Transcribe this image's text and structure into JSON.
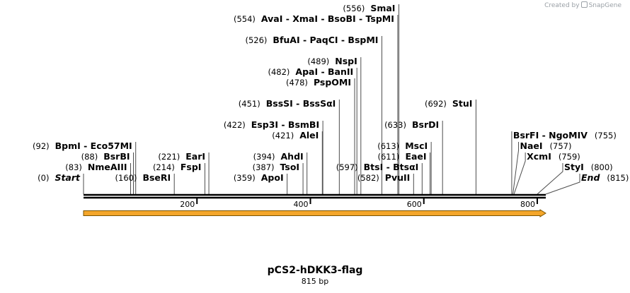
{
  "watermark": {
    "text": "Created by",
    "brand": "SnapGene"
  },
  "map": {
    "name": "pCS2-hDKK3-flag",
    "length_label": "815 bp",
    "length": 815
  },
  "ruler": {
    "ticks": [
      200,
      400,
      600,
      800
    ]
  },
  "feature": {
    "start": 0,
    "end": 815,
    "color": "#f4a62a"
  },
  "colors": {
    "backbone": "#000000",
    "connector": "#4d4d4d",
    "feature_stroke": "#7a5300"
  },
  "labels": [
    {
      "id": "start",
      "text": "Start",
      "pos": 0,
      "pos_label": "(0)",
      "style": "italic",
      "side": "left",
      "row": 0
    },
    {
      "id": "nmeaiii",
      "text": "NmeAIII",
      "pos": 83,
      "pos_label": "(83)",
      "style": "bold",
      "side": "left",
      "row": 1
    },
    {
      "id": "bsrbi",
      "text": "BsrBI",
      "pos": 88,
      "pos_label": "(88)",
      "style": "bold",
      "side": "left",
      "row": 2
    },
    {
      "id": "bpmi",
      "text": "BpmI  - Eco57MI",
      "pos": 92,
      "pos_label": "(92)",
      "style": "bold",
      "side": "left",
      "row": 3
    },
    {
      "id": "bseri",
      "text": "BseRI",
      "pos": 160,
      "pos_label": "(160)",
      "style": "bold",
      "side": "left",
      "row": 0
    },
    {
      "id": "fspi",
      "text": "FspI",
      "pos": 214,
      "pos_label": "(214)",
      "style": "bold",
      "side": "left",
      "row": 1
    },
    {
      "id": "eari",
      "text": "EarI",
      "pos": 221,
      "pos_label": "(221)",
      "style": "bold",
      "side": "left",
      "row": 2
    },
    {
      "id": "apoi",
      "text": "ApoI",
      "pos": 359,
      "pos_label": "(359)",
      "style": "bold",
      "side": "left",
      "row": 0
    },
    {
      "id": "tsoi",
      "text": "TsoI",
      "pos": 387,
      "pos_label": "(387)",
      "style": "bold",
      "side": "left",
      "row": 1
    },
    {
      "id": "ahdi",
      "text": "AhdI",
      "pos": 394,
      "pos_label": "(394)",
      "style": "bold",
      "side": "left",
      "row": 2
    },
    {
      "id": "alei",
      "text": "AleI",
      "pos": 421,
      "pos_label": "(421)",
      "style": "bold",
      "side": "left",
      "row": 4
    },
    {
      "id": "esp3i",
      "text": "Esp3I  - BsmBI",
      "pos": 422,
      "pos_label": "(422)",
      "style": "bold",
      "side": "left",
      "row": 5
    },
    {
      "id": "bsssi",
      "text": "BssSI  - BssSαI",
      "pos": 451,
      "pos_label": "(451)",
      "style": "bold",
      "side": "left",
      "row": 7
    },
    {
      "id": "pspomi",
      "text": "PspOMI",
      "pos": 478,
      "pos_label": "(478)",
      "style": "bold",
      "side": "left",
      "row": 9
    },
    {
      "id": "apai",
      "text": "ApaI  - BanII",
      "pos": 482,
      "pos_label": "(482)",
      "style": "bold",
      "side": "left",
      "row": 10
    },
    {
      "id": "nspi",
      "text": "NspI",
      "pos": 489,
      "pos_label": "(489)",
      "style": "bold",
      "side": "left",
      "row": 11
    },
    {
      "id": "bfuai",
      "text": "BfuAI  - PaqCI  - BspMI",
      "pos": 526,
      "pos_label": "(526)",
      "style": "bold",
      "side": "left",
      "row": 13
    },
    {
      "id": "avai",
      "text": "AvaI  - XmaI  - BsoBI  - TspMI",
      "pos": 554,
      "pos_label": "(554)",
      "style": "bold",
      "side": "left",
      "row": 15
    },
    {
      "id": "smai",
      "text": "SmaI",
      "pos": 556,
      "pos_label": "(556)",
      "style": "bold",
      "side": "left",
      "row": 16
    },
    {
      "id": "pvuii",
      "text": "PvuII",
      "pos": 582,
      "pos_label": "(582)",
      "style": "bold",
      "side": "left",
      "row": 0
    },
    {
      "id": "btsi",
      "text": "BtsI  - BtsαI",
      "pos": 597,
      "pos_label": "(597)",
      "style": "bold",
      "side": "left",
      "row": 1
    },
    {
      "id": "eaei",
      "text": "EaeI",
      "pos": 611,
      "pos_label": "(611)",
      "style": "bold",
      "side": "left",
      "row": 2
    },
    {
      "id": "msci",
      "text": "MscI",
      "pos": 613,
      "pos_label": "(613)",
      "style": "bold",
      "side": "left",
      "row": 3
    },
    {
      "id": "bsrdi",
      "text": "BsrDI",
      "pos": 633,
      "pos_label": "(633)",
      "style": "bold",
      "side": "left",
      "row": 5
    },
    {
      "id": "stui",
      "text": "StuI",
      "pos": 692,
      "pos_label": "(692)",
      "style": "bold",
      "side": "left",
      "row": 7
    },
    {
      "id": "end",
      "text": "End",
      "pos": 815,
      "pos_label": "(815)",
      "style": "italic",
      "side": "right",
      "row": 0
    },
    {
      "id": "styi",
      "text": "StyI",
      "pos": 800,
      "pos_label": "(800)",
      "style": "bold",
      "side": "right",
      "row": 1
    },
    {
      "id": "xcmi",
      "text": "XcmI",
      "pos": 759,
      "pos_label": "(759)",
      "style": "bold",
      "side": "right",
      "row": 2
    },
    {
      "id": "naei",
      "text": "NaeI",
      "pos": 757,
      "pos_label": "(757)",
      "style": "bold",
      "side": "right",
      "row": 3
    },
    {
      "id": "bsrfi",
      "text": "BsrFI  - NgoMIV",
      "pos": 755,
      "pos_label": "(755)",
      "style": "bold",
      "side": "right",
      "row": 4
    }
  ]
}
